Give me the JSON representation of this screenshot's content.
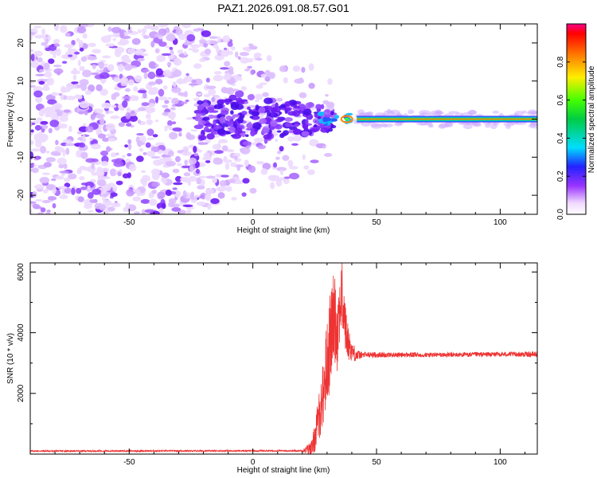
{
  "title": "PAZ1.2026.091.08.57.G01",
  "chart_data": [
    {
      "type": "heatmap",
      "title": "PAZ1.2026.091.08.57.G01",
      "xlabel": "Height of straight line (km)",
      "ylabel": "Frequency (Hz)",
      "xlim": [
        -90,
        115
      ],
      "ylim": [
        -25,
        25
      ],
      "xticks": [
        -50,
        0,
        50,
        100
      ],
      "yticks": [
        -20,
        -10,
        0,
        10,
        20
      ],
      "colorbar": {
        "label": "Normalized spectral amplitude",
        "range": [
          0,
          1
        ],
        "ticks": [
          0.0,
          0.2,
          0.4,
          0.6,
          0.8
        ],
        "colormap": "rainbow"
      },
      "features": {
        "noise_region_x": [
          -90,
          25
        ],
        "transition_region_x": [
          25,
          42
        ],
        "carrier_region_x": [
          42,
          115
        ],
        "carrier_frequency_hz": 0,
        "carrier_amplitude": 0.95
      }
    },
    {
      "type": "line",
      "xlabel": "Height of straight line (km)",
      "ylabel": "SNR (10 * v/v)",
      "xlim": [
        -90,
        115
      ],
      "ylim": [
        0,
        6300
      ],
      "xticks": [
        -50,
        0,
        50,
        100
      ],
      "yticks": [
        2000,
        4000,
        6000
      ],
      "line_color": "#ee3333",
      "profile": {
        "x": [
          -90,
          20,
          24,
          26,
          28,
          30,
          31,
          32,
          33,
          34,
          35,
          36,
          37,
          38,
          39,
          40,
          42,
          44,
          60,
          80,
          100,
          115
        ],
        "baseline": [
          100,
          110,
          200,
          900,
          1800,
          3000,
          3600,
          4200,
          4600,
          4000,
          4800,
          5200,
          4500,
          3800,
          3600,
          3400,
          3250,
          3270,
          3270,
          3270,
          3290,
          3290
        ],
        "amplitude": [
          25,
          25,
          300,
          700,
          1000,
          1500,
          1600,
          1500,
          1500,
          1400,
          1200,
          1200,
          1000,
          700,
          500,
          350,
          200,
          100,
          80,
          80,
          80,
          90
        ]
      }
    }
  ]
}
